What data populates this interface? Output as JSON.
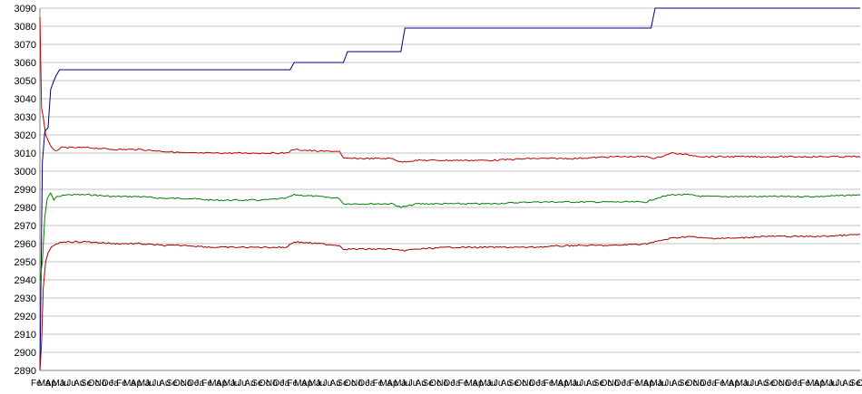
{
  "chart_data": {
    "type": "line",
    "title": "",
    "xlabel": "",
    "ylabel": "",
    "ylim": [
      2890,
      3090
    ],
    "y_ticks": [
      2890,
      2900,
      2910,
      2920,
      2930,
      2940,
      2950,
      2960,
      2970,
      2980,
      2990,
      3000,
      3010,
      3020,
      3030,
      3040,
      3050,
      3060,
      3070,
      3080,
      3090
    ],
    "grid": true,
    "legend": "none",
    "x_tick_labels": [
      "Fe",
      "Ma",
      "Ap",
      "Ma",
      "Ju",
      "Ju",
      "Au",
      "Se",
      "Oc",
      "No",
      "De",
      "Ja",
      "Fe",
      "Ma",
      "Ap",
      "Ma",
      "Ju",
      "Ju",
      "Au",
      "Se",
      "Oc",
      "No",
      "De",
      "Ja",
      "Fe",
      "Ma",
      "Ap",
      "Ma",
      "Ju",
      "Ju",
      "Au",
      "Se",
      "Oc",
      "No",
      "De",
      "Ja",
      "Fe",
      "Ma",
      "Ap",
      "Ma",
      "Ju",
      "Ju",
      "Au",
      "Se",
      "Oc",
      "No",
      "De",
      "Ja",
      "Fe",
      "Ma",
      "Ap",
      "Ma",
      "Ju",
      "Ju",
      "Au",
      "Se",
      "Oc",
      "No",
      "De",
      "Ja",
      "Fe",
      "Ma",
      "Ap",
      "Ma",
      "Ju",
      "Ju",
      "Au",
      "Se",
      "Oc",
      "No",
      "De",
      "Ja",
      "Fe",
      "Ma",
      "Ap",
      "Ma",
      "Ju",
      "Ju",
      "Au",
      "Se",
      "Oc",
      "No",
      "De",
      "Ja",
      "Fe",
      "Ma",
      "Ap",
      "Ma",
      "Ju",
      "Ju",
      "Au",
      "Se",
      "Oc",
      "No",
      "De",
      "Ja",
      "Fe",
      "Ma",
      "Ap",
      "Ma",
      "Ju",
      "Ju",
      "Au",
      "Se",
      "Oc",
      "No",
      "De",
      "Ja",
      "Fe",
      "Ma",
      "Ap",
      "Ma",
      "Ju",
      "Ju",
      "Au",
      "Se",
      "Oc"
    ],
    "x_range": [
      0,
      100
    ],
    "series": [
      {
        "color": "#000080",
        "step": true,
        "x": [
          0,
          0.3,
          0.6,
          1.0,
          1.3,
          1.7,
          2.0,
          2.4,
          2.8,
          3.5,
          30.5,
          31.0,
          37.0,
          37.5,
          44.0,
          44.5,
          74.5,
          75.0,
          100
        ],
        "y": [
          2890,
          3005,
          3022,
          3024,
          3045,
          3050,
          3053,
          3056,
          3056,
          3056,
          3056,
          3060,
          3060,
          3066,
          3066,
          3079,
          3079,
          3090,
          3090
        ]
      },
      {
        "color": "#008000",
        "x": [
          0,
          0.3,
          0.6,
          0.9,
          1.3,
          1.7,
          2.1,
          2.5,
          3.0,
          4.0,
          6.0,
          9.0,
          12.0,
          15.0,
          18.0,
          21.0,
          24.0,
          27.0,
          30.0,
          31.0,
          34.0,
          36.5,
          37.0,
          40.0,
          43.0,
          44.0,
          46.0,
          50.0,
          55.0,
          60.0,
          65.0,
          70.0,
          74.0,
          75.0,
          77.0,
          79.0,
          81.0,
          85.0,
          90.0,
          95.0,
          100
        ],
        "y": [
          2940,
          2950,
          2975,
          2985,
          2988,
          2984,
          2986,
          2986,
          2987,
          2987,
          2987,
          2986,
          2986,
          2985,
          2985,
          2984,
          2984,
          2984,
          2985,
          2987,
          2986,
          2985,
          2982,
          2982,
          2982,
          2980,
          2982,
          2982,
          2982,
          2983,
          2983,
          2983,
          2983,
          2985,
          2987,
          2987,
          2986,
          2986,
          2986,
          2986,
          2987
        ]
      },
      {
        "color": "#c00000",
        "x": [
          0,
          0.2,
          0.4,
          0.7,
          1.0,
          1.4,
          1.8,
          2.2,
          2.6,
          3.0,
          4.0,
          6.0,
          9.0,
          12.0,
          15.0,
          18.0,
          21.0,
          24.0,
          27.0,
          30.0,
          31.0,
          34.0,
          36.5,
          37.0,
          40.0,
          43.0,
          44.0,
          46.0,
          50.0,
          55.0,
          60.0,
          65.0,
          70.0,
          74.0,
          75.0,
          77.0,
          79.0,
          81.0,
          85.0,
          90.0,
          95.0,
          100
        ],
        "y": [
          3085,
          3035,
          3030,
          3020,
          3017,
          3013,
          3011,
          3012,
          3013,
          3013,
          3013,
          3013,
          3012,
          3012,
          3011,
          3010,
          3010,
          3010,
          3010,
          3010,
          3012,
          3011,
          3011,
          3007,
          3007,
          3007,
          3005,
          3006,
          3006,
          3006,
          3007,
          3007,
          3008,
          3008,
          3007,
          3010,
          3009,
          3008,
          3008,
          3008,
          3008,
          3008
        ]
      },
      {
        "color": "#a00000",
        "x": [
          0,
          0.2,
          0.4,
          0.7,
          1.0,
          1.4,
          1.8,
          2.2,
          2.6,
          3.0,
          4.0,
          6.0,
          9.0,
          12.0,
          15.0,
          18.0,
          21.0,
          24.0,
          27.0,
          30.0,
          31.0,
          34.0,
          36.5,
          37.0,
          40.0,
          43.0,
          44.0,
          46.0,
          50.0,
          55.0,
          60.0,
          65.0,
          70.0,
          74.0,
          75.0,
          77.0,
          79.0,
          81.0,
          85.0,
          88.0,
          90.0,
          95.0,
          100
        ],
        "y": [
          2890,
          2905,
          2935,
          2950,
          2955,
          2958,
          2959,
          2960,
          2961,
          2961,
          2961,
          2961,
          2960,
          2960,
          2959,
          2959,
          2958,
          2958,
          2958,
          2958,
          2961,
          2960,
          2959,
          2957,
          2957,
          2957,
          2956,
          2957,
          2958,
          2958,
          2958,
          2959,
          2959,
          2960,
          2961,
          2963,
          2964,
          2963,
          2963,
          2964,
          2964,
          2964,
          2965
        ]
      }
    ]
  }
}
